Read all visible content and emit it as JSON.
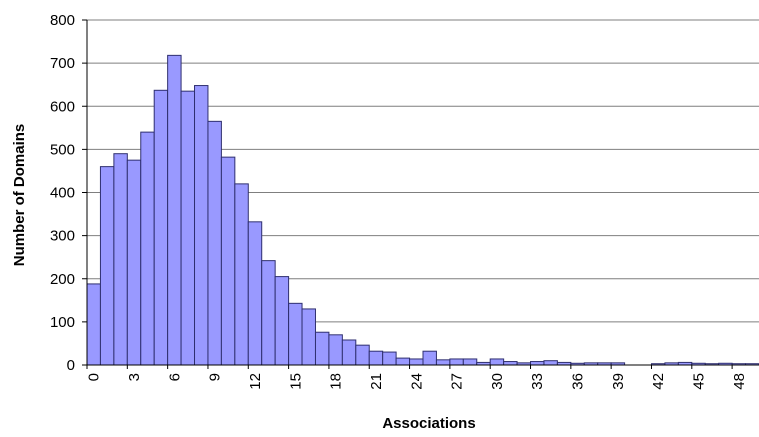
{
  "chart_data": {
    "type": "bar",
    "title": "",
    "xlabel": "Associations",
    "ylabel": "Number of Domains",
    "ylim": [
      0,
      800
    ],
    "yticks": [
      "0",
      "100",
      "200",
      "300",
      "400",
      "500",
      "600",
      "700",
      "800"
    ],
    "x": [
      0,
      1,
      2,
      3,
      4,
      5,
      6,
      7,
      8,
      9,
      10,
      11,
      12,
      13,
      14,
      15,
      16,
      17,
      18,
      19,
      20,
      21,
      22,
      23,
      24,
      25,
      26,
      27,
      28,
      29,
      30,
      31,
      32,
      33,
      34,
      35,
      36,
      37,
      38,
      39,
      40,
      41,
      42,
      43,
      44,
      45,
      46,
      47,
      48,
      49
    ],
    "xticks": [
      "0",
      "3",
      "6",
      "9",
      "12",
      "15",
      "18",
      "21",
      "24",
      "27",
      "30",
      "33",
      "36",
      "39",
      "42",
      "45",
      "48"
    ],
    "values": [
      188,
      460,
      490,
      475,
      540,
      637,
      718,
      635,
      648,
      565,
      482,
      420,
      332,
      242,
      205,
      143,
      130,
      76,
      70,
      58,
      46,
      32,
      30,
      16,
      14,
      32,
      12,
      14,
      14,
      6,
      14,
      8,
      5,
      8,
      10,
      6,
      4,
      5,
      5,
      5,
      0,
      0,
      3,
      5,
      6,
      4,
      3,
      4,
      3,
      3
    ],
    "bar_color": "#9999ff",
    "bar_edge_color": "#2f2f6f",
    "grid": true,
    "legend": "none"
  }
}
